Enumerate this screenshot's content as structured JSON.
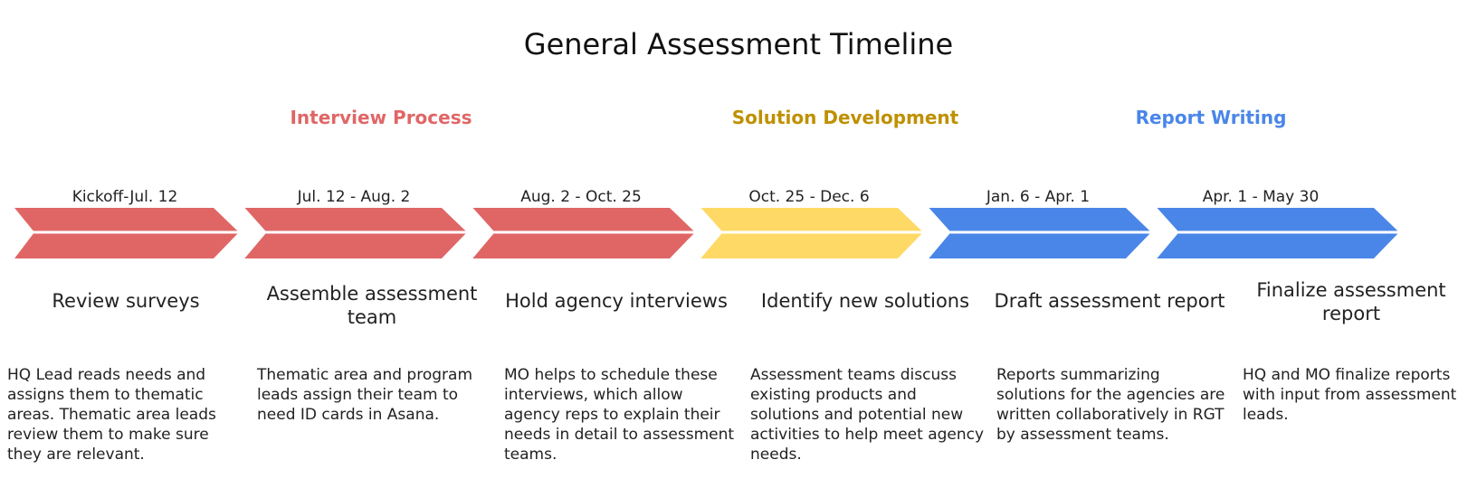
{
  "title": "General Assessment Timeline",
  "phases": [
    {
      "label": "Interview Process",
      "color": "#e06666"
    },
    {
      "label": "Solution Development",
      "color": "#bf9000"
    },
    {
      "label": "Report Writing",
      "color": "#4a86e8"
    }
  ],
  "colors": {
    "red": "#e06666",
    "yellow": "#ffd966",
    "blue": "#4a86e8"
  },
  "steps": [
    {
      "date": "Kickoff-Jul. 12",
      "title": "Review surveys",
      "description": "HQ Lead reads needs and assigns them to thematic areas. Thematic area leads review them to make sure they are relevant.",
      "color": "#e06666"
    },
    {
      "date": "Jul. 12 - Aug. 2",
      "title": "Assemble assessment team",
      "description": "Thematic area and program leads assign their team to need ID cards in Asana.",
      "color": "#e06666"
    },
    {
      "date": "Aug. 2 - Oct. 25",
      "title": "Hold agency interviews",
      "description": "MO helps to schedule these interviews, which allow agency reps to explain their needs in detail to assessment teams.",
      "color": "#e06666"
    },
    {
      "date": "Oct. 25 - Dec. 6",
      "title": "Identify new solutions",
      "description": "Assessment teams discuss existing products and solutions and potential new activities to help meet agency needs.",
      "color": "#ffd966"
    },
    {
      "date": "Jan. 6 - Apr. 1",
      "title": "Draft assessment report",
      "description": "Reports summarizing solutions for the agencies are written collaboratively in RGT by assessment teams.",
      "color": "#4a86e8"
    },
    {
      "date": "Apr. 1 - May 30",
      "title": "Finalize assessment report",
      "description": "HQ and MO finalize reports with input from assessment leads.",
      "color": "#4a86e8"
    }
  ]
}
